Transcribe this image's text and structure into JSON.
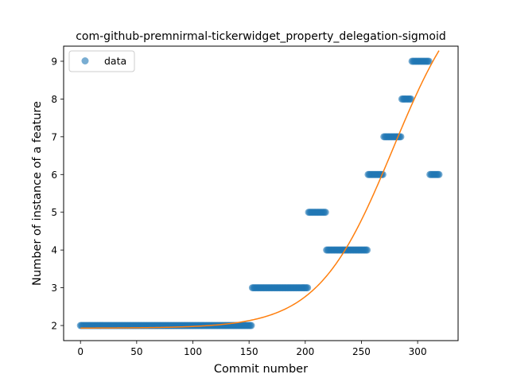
{
  "chart_data": {
    "type": "scatter",
    "title": "com-github-premnirmal-tickerwidget_property_delegation-sigmoid",
    "xlabel": "Commit number",
    "ylabel": "Number of instance of a feature",
    "xlim": [
      -15,
      336
    ],
    "ylim": [
      1.6,
      9.4
    ],
    "xticks": [
      0,
      50,
      100,
      150,
      200,
      250,
      300
    ],
    "yticks": [
      2,
      3,
      4,
      5,
      6,
      7,
      8,
      9
    ],
    "grid": false,
    "legend": {
      "placement": "top-left",
      "entries": [
        "data"
      ]
    },
    "series": [
      {
        "name": "data",
        "kind": "scatter",
        "color": "#1f77b4",
        "alpha": 0.6,
        "segments": [
          {
            "x_start": 0,
            "x_end": 152,
            "y": 2
          },
          {
            "x_start": 153,
            "x_end": 202,
            "y": 3
          },
          {
            "x_start": 203,
            "x_end": 218,
            "y": 5
          },
          {
            "x_start": 219,
            "x_end": 255,
            "y": 4
          },
          {
            "x_start": 256,
            "x_end": 269,
            "y": 6
          },
          {
            "x_start": 270,
            "x_end": 285,
            "y": 7
          },
          {
            "x_start": 286,
            "x_end": 294,
            "y": 8
          },
          {
            "x_start": 295,
            "x_end": 310,
            "y": 9
          },
          {
            "x_start": 311,
            "x_end": 319,
            "y": 6
          }
        ]
      },
      {
        "kind": "line",
        "color": "#ff7f0e",
        "fit": {
          "model": "sigmoid",
          "L": 9.5,
          "k": 0.03,
          "x0": 278,
          "offset": 1.93
        },
        "x_range": [
          0,
          319
        ]
      }
    ]
  }
}
